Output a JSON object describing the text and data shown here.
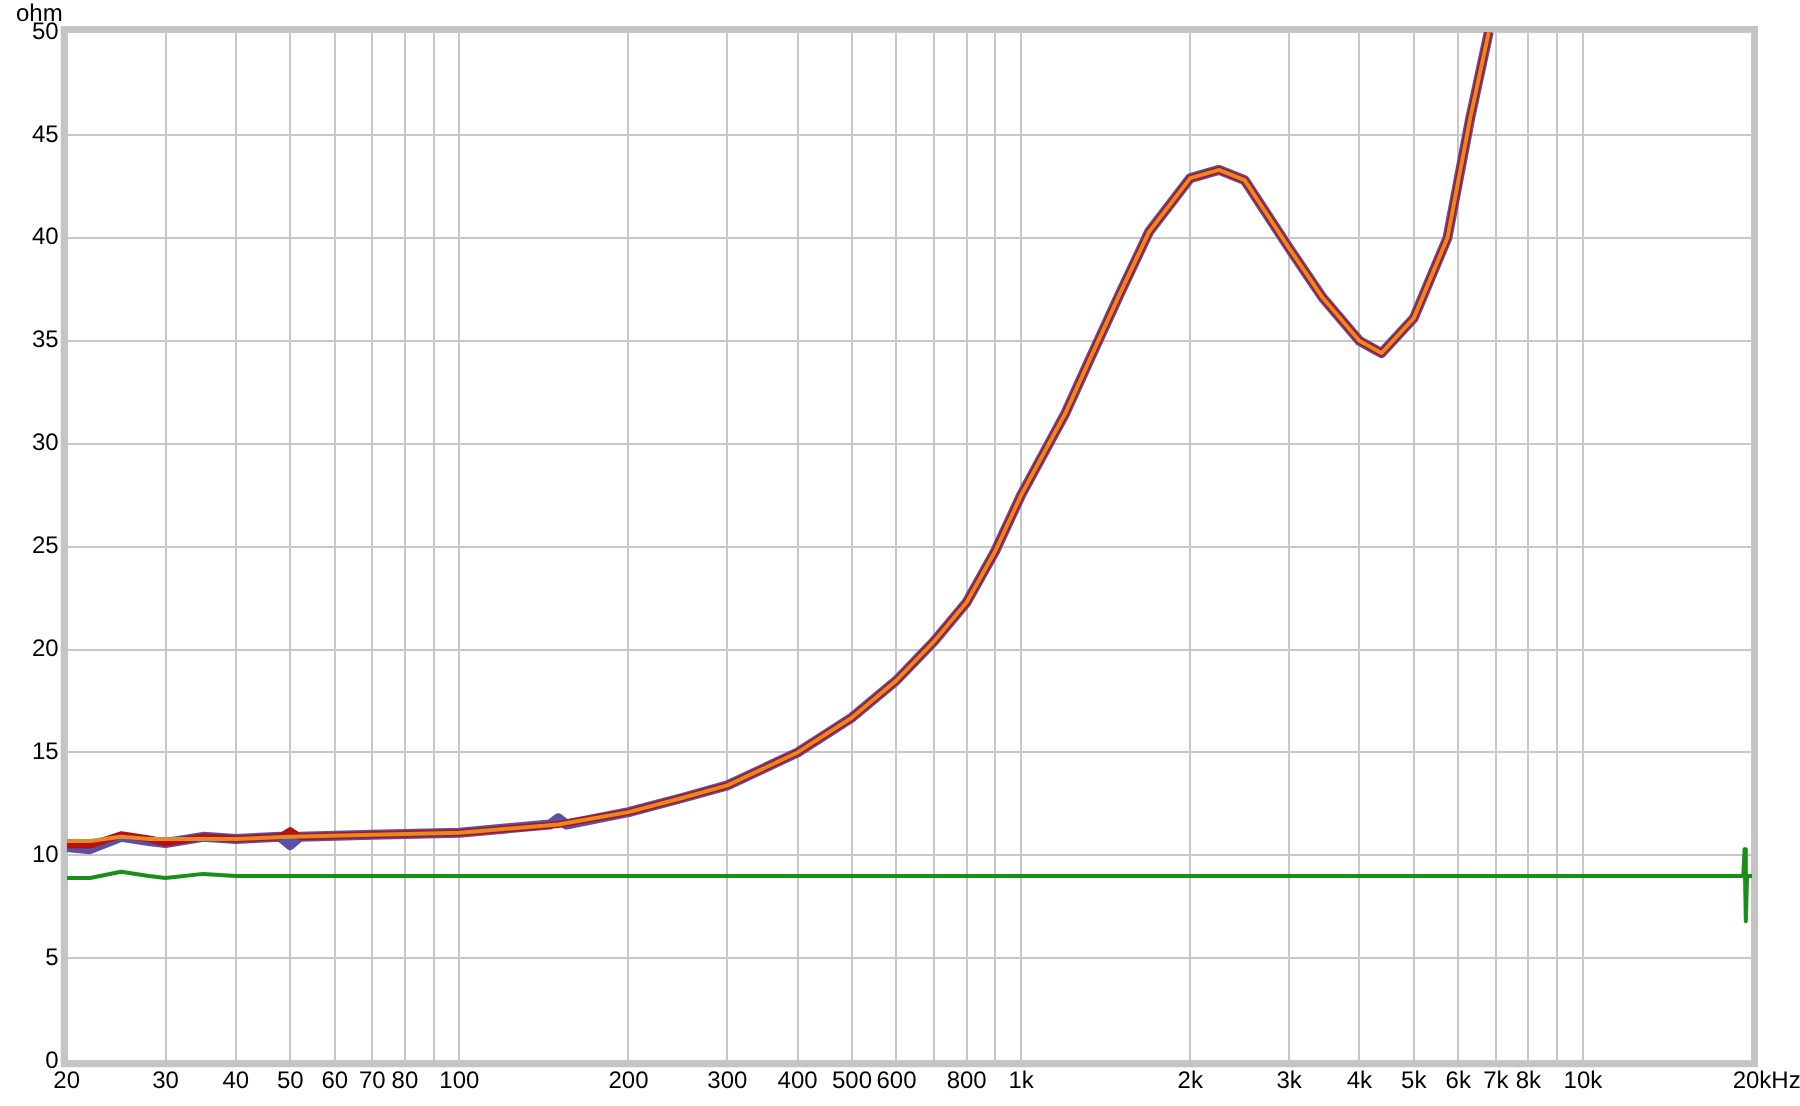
{
  "chart_data": {
    "type": "line",
    "ylabel": "ohm",
    "log": "x",
    "xlim": [
      20,
      20000
    ],
    "ylim": [
      0,
      50
    ],
    "xticks": [
      {
        "value": 20,
        "label": "20"
      },
      {
        "value": 30,
        "label": "30"
      },
      {
        "value": 40,
        "label": "40"
      },
      {
        "value": 50,
        "label": "50"
      },
      {
        "value": 60,
        "label": "60"
      },
      {
        "value": 70,
        "label": "70"
      },
      {
        "value": 80,
        "label": "80"
      },
      {
        "value": 90,
        "label": null
      },
      {
        "value": 100,
        "label": "100"
      },
      {
        "value": 200,
        "label": "200"
      },
      {
        "value": 300,
        "label": "300"
      },
      {
        "value": 400,
        "label": "400"
      },
      {
        "value": 500,
        "label": "500"
      },
      {
        "value": 600,
        "label": "600"
      },
      {
        "value": 700,
        "label": null
      },
      {
        "value": 800,
        "label": "800"
      },
      {
        "value": 900,
        "label": null
      },
      {
        "value": 1000,
        "label": "1k"
      },
      {
        "value": 2000,
        "label": "2k"
      },
      {
        "value": 3000,
        "label": "3k"
      },
      {
        "value": 4000,
        "label": "4k"
      },
      {
        "value": 5000,
        "label": "5k"
      },
      {
        "value": 6000,
        "label": "6k"
      },
      {
        "value": 7000,
        "label": "7k"
      },
      {
        "value": 8000,
        "label": "8k"
      },
      {
        "value": 9000,
        "label": null
      },
      {
        "value": 10000,
        "label": "10k"
      },
      {
        "value": 20000,
        "label": "20k"
      }
    ],
    "xlabel": "Hz",
    "yticks": [
      0,
      5,
      10,
      15,
      20,
      25,
      30,
      35,
      40,
      45,
      50
    ],
    "grid": true,
    "legend": false,
    "marker": "none",
    "line_style": "solid",
    "series": [
      {
        "color": "#5a50a8",
        "x": [
          20,
          22,
          25,
          28,
          30,
          35,
          40,
          48,
          50,
          52,
          70,
          100,
          145,
          150,
          155,
          200,
          250,
          300,
          400,
          500,
          600,
          700,
          800,
          900,
          1000,
          1200,
          1320,
          1500,
          1690,
          2000,
          2250,
          2500,
          3000,
          3440,
          4000,
          4380,
          5000,
          5740,
          6300,
          6800
        ],
        "values": [
          10.4,
          10.3,
          10.9,
          10.7,
          10.6,
          10.9,
          10.8,
          10.9,
          10.5,
          10.9,
          11.0,
          11.1,
          11.5,
          11.8,
          11.5,
          12.1,
          12.8,
          13.4,
          15.0,
          16.7,
          18.5,
          20.4,
          22.3,
          24.8,
          27.5,
          31.5,
          34.0,
          37.3,
          40.3,
          42.9,
          43.3,
          42.8,
          39.5,
          37.1,
          35.0,
          34.4,
          36.1,
          40.0,
          45.8,
          50
        ]
      },
      {
        "color": "#b81010",
        "x": [
          20,
          22,
          25,
          28,
          30,
          35,
          40,
          48,
          50,
          52,
          70,
          100,
          150,
          200,
          250,
          300,
          400,
          500,
          600,
          700,
          800,
          900,
          1000,
          1200,
          1320,
          1500,
          1690,
          2000,
          2250,
          2500,
          3000,
          3440,
          4000,
          4380,
          5000,
          5740,
          6300,
          6800
        ],
        "values": [
          10.5,
          10.5,
          11.0,
          10.8,
          10.6,
          10.9,
          10.8,
          10.9,
          11.2,
          10.9,
          11.0,
          11.1,
          11.5,
          12.1,
          12.8,
          13.4,
          15.0,
          16.7,
          18.5,
          20.4,
          22.3,
          24.8,
          27.5,
          31.5,
          34.0,
          37.3,
          40.3,
          42.9,
          43.3,
          42.8,
          39.5,
          37.1,
          35.0,
          34.4,
          36.1,
          40.0,
          45.8,
          50
        ]
      },
      {
        "color": "#e08a28",
        "x": [
          20,
          22,
          25,
          28,
          30,
          35,
          40,
          50,
          70,
          100,
          150,
          200,
          250,
          300,
          400,
          500,
          600,
          700,
          800,
          900,
          1000,
          1200,
          1320,
          1500,
          1690,
          2000,
          2250,
          2500,
          3000,
          3440,
          4000,
          4380,
          5000,
          5740,
          6300,
          6800
        ],
        "values": [
          10.7,
          10.7,
          10.9,
          10.8,
          10.8,
          10.8,
          10.8,
          10.9,
          11.0,
          11.1,
          11.5,
          12.1,
          12.8,
          13.4,
          15.0,
          16.7,
          18.5,
          20.4,
          22.3,
          24.8,
          27.5,
          31.5,
          34.0,
          37.3,
          40.3,
          42.9,
          43.3,
          42.8,
          39.5,
          37.1,
          35.0,
          34.4,
          36.1,
          40.0,
          45.8,
          50
        ]
      },
      {
        "color": "#189018",
        "x": [
          20,
          22,
          25,
          28,
          30,
          35,
          40,
          100,
          1000,
          10000,
          19300,
          19400,
          19500,
          19600,
          20000
        ],
        "values": [
          8.9,
          8.9,
          9.2,
          9.0,
          8.9,
          9.1,
          9.0,
          9.0,
          9.0,
          9.0,
          9.0,
          10.3,
          6.8,
          9.0,
          9.0
        ]
      }
    ]
  }
}
